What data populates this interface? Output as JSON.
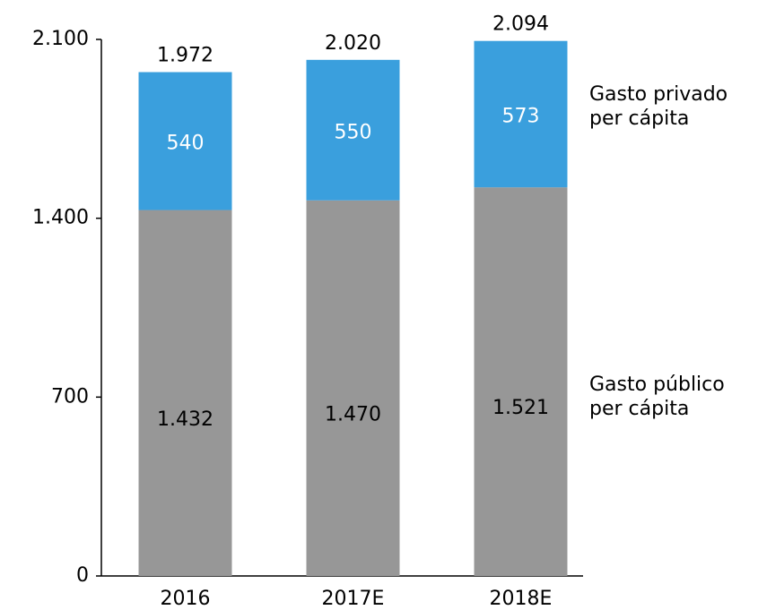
{
  "chart_data": {
    "type": "stacked_bar",
    "categories": [
      "2016",
      "2017E",
      "2018E"
    ],
    "series": [
      {
        "name": "Gasto público per cápita",
        "color": "#979797",
        "values": [
          1432,
          1470,
          1521
        ],
        "value_labels": [
          "1.432",
          "1.470",
          "1.521"
        ]
      },
      {
        "name": "Gasto privado per cápita",
        "color": "#3a9fdd",
        "values": [
          540,
          550,
          573
        ],
        "value_labels": [
          "540",
          "550",
          "573"
        ]
      }
    ],
    "totals": {
      "values": [
        1972,
        2020,
        2094
      ],
      "value_labels": [
        "1.972",
        "2.020",
        "2.094"
      ]
    },
    "ylim": [
      0,
      2100
    ],
    "yticks": [
      0,
      700,
      {
        "value": 1400,
        "label": "1.400"
      },
      {
        "value": 2100,
        "label": "2.100"
      }
    ],
    "grid": false
  }
}
